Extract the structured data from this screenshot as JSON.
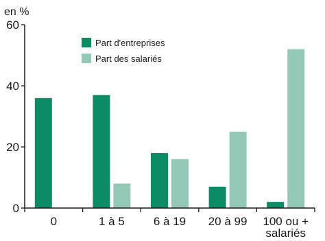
{
  "chart_data": {
    "type": "bar",
    "title": "",
    "unit_label": "en %",
    "xlabel": "",
    "ylabel": "",
    "categories": [
      "0",
      "1 à 5",
      "6 à 19",
      "20 à 99",
      "100 ou + salariés"
    ],
    "category_lines": [
      [
        "0"
      ],
      [
        "1 à 5"
      ],
      [
        "6 à 19"
      ],
      [
        "20 à 99"
      ],
      [
        "100 ou +",
        "salariés"
      ]
    ],
    "series": [
      {
        "name": "Part d'entreprises",
        "values": [
          36,
          37,
          18,
          7,
          2
        ],
        "color": "#0b8c63"
      },
      {
        "name": "Part des salariés",
        "values": [
          0,
          8,
          16,
          25,
          52
        ],
        "color": "#93c9b6"
      }
    ],
    "ylim": [
      0,
      60
    ],
    "yticks": [
      0,
      20,
      40,
      60
    ],
    "grid": false,
    "legend_position": "top-left"
  }
}
